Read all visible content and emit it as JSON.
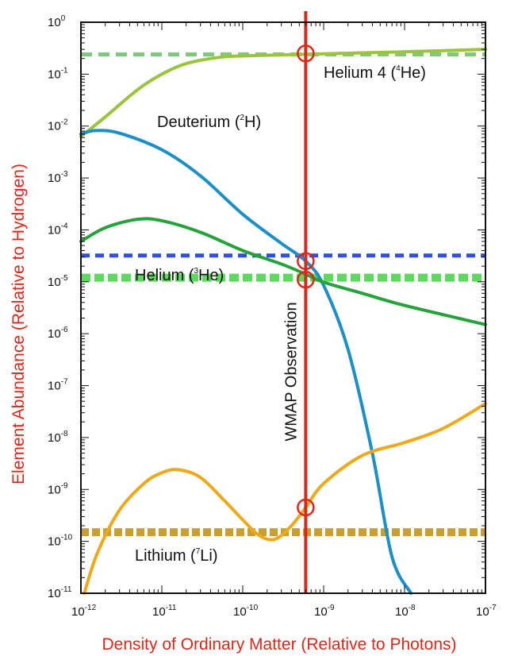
{
  "chart_data": {
    "type": "line",
    "title": "",
    "xlabel": "Density of Ordinary Matter (Relative to Photons)",
    "ylabel": "Element Abundance (Relative to Hydrogen)",
    "x_scale": "log",
    "y_scale": "log",
    "xlim": [
      1e-12,
      1e-07
    ],
    "ylim": [
      1e-11,
      1
    ],
    "x_ticks": [
      {
        "base": "10",
        "exp": "-12",
        "value": 1e-12
      },
      {
        "base": "10",
        "exp": "-11",
        "value": 1e-11
      },
      {
        "base": "10",
        "exp": "-10",
        "value": 1e-10
      },
      {
        "base": "10",
        "exp": "-9",
        "value": 1e-09
      },
      {
        "base": "10",
        "exp": "-8",
        "value": 1e-08
      },
      {
        "base": "10",
        "exp": "-7",
        "value": 1e-07
      }
    ],
    "y_ticks": [
      {
        "base": "10",
        "exp": "0",
        "value": 1
      },
      {
        "base": "10",
        "exp": "-1",
        "value": 0.1
      },
      {
        "base": "10",
        "exp": "-2",
        "value": 0.01
      },
      {
        "base": "10",
        "exp": "-3",
        "value": 0.001
      },
      {
        "base": "10",
        "exp": "-4",
        "value": 0.0001
      },
      {
        "base": "10",
        "exp": "-5",
        "value": 1e-05
      },
      {
        "base": "10",
        "exp": "-6",
        "value": 1e-06
      },
      {
        "base": "10",
        "exp": "-7",
        "value": 1e-07
      },
      {
        "base": "10",
        "exp": "-8",
        "value": 1e-08
      },
      {
        "base": "10",
        "exp": "-9",
        "value": 1e-09
      },
      {
        "base": "10",
        "exp": "-10",
        "value": 1e-10
      },
      {
        "base": "10",
        "exp": "-11",
        "value": 1e-11
      }
    ],
    "series": [
      {
        "name_parts": [
          "Helium 4 (",
          "4",
          "He)"
        ],
        "color": "#9bc43a",
        "points": [
          [
            1e-12,
            0.0063
          ],
          [
            2e-12,
            0.015
          ],
          [
            5e-12,
            0.05
          ],
          [
            1e-11,
            0.1
          ],
          [
            2e-11,
            0.16
          ],
          [
            5e-11,
            0.21
          ],
          [
            1e-10,
            0.225
          ],
          [
            3e-10,
            0.235
          ],
          [
            6e-10,
            0.242
          ],
          [
            1e-09,
            0.247
          ],
          [
            1e-08,
            0.27
          ],
          [
            1e-07,
            0.3
          ]
        ]
      },
      {
        "name_parts": [
          "Deuterium (",
          "2",
          "H)"
        ],
        "color": "#1a8fc8",
        "points": [
          [
            1e-12,
            0.007
          ],
          [
            1.5e-12,
            0.0082
          ],
          [
            3e-12,
            0.0073
          ],
          [
            1e-11,
            0.0035
          ],
          [
            3e-11,
            0.0011
          ],
          [
            1e-10,
            0.0002
          ],
          [
            3e-10,
            5.5e-05
          ],
          [
            6e-10,
            2.5e-05
          ],
          [
            1e-09,
            8.5e-06
          ],
          [
            2e-09,
            5e-07
          ],
          [
            4e-09,
            5e-09
          ],
          [
            7e-09,
            5e-11
          ],
          [
            1.2e-08,
            1e-11
          ]
        ]
      },
      {
        "name_parts": [
          "Helium (",
          "3",
          "He)"
        ],
        "color": "#25a33a",
        "points": [
          [
            1e-12,
            6e-05
          ],
          [
            2e-12,
            0.00011
          ],
          [
            5e-12,
            0.00016
          ],
          [
            1e-11,
            0.00015
          ],
          [
            3e-11,
            9e-05
          ],
          [
            1e-10,
            4e-05
          ],
          [
            3e-10,
            2.2e-05
          ],
          [
            6e-10,
            1.4e-05
          ],
          [
            1e-09,
            9.8e-06
          ],
          [
            3e-09,
            6e-06
          ],
          [
            1e-08,
            3.5e-06
          ],
          [
            1e-07,
            1.5e-06
          ]
        ]
      },
      {
        "name_parts": [
          "Lithium (",
          "7",
          "Li)"
        ],
        "color": "#f0a818",
        "points": [
          [
            1.1e-12,
            1e-11
          ],
          [
            1.6e-12,
            6e-11
          ],
          [
            3e-12,
            4e-10
          ],
          [
            6e-12,
            1.3e-09
          ],
          [
            1e-11,
            2.1e-09
          ],
          [
            1.6e-11,
            2.4e-09
          ],
          [
            3e-11,
            1.7e-09
          ],
          [
            6e-11,
            6e-10
          ],
          [
            1e-10,
            2.6e-10
          ],
          [
            1.6e-10,
            1.3e-10
          ],
          [
            2.5e-10,
            1.1e-10
          ],
          [
            4e-10,
            2e-10
          ],
          [
            6e-10,
            4.5e-10
          ],
          [
            1e-09,
            1.3e-09
          ],
          [
            3e-09,
            4.5e-09
          ],
          [
            1e-08,
            8e-09
          ],
          [
            3e-08,
            1.5e-08
          ],
          [
            1e-07,
            4.5e-08
          ]
        ]
      }
    ],
    "observations": [
      {
        "color": "#7fc97f",
        "value": 0.24
      },
      {
        "color": "#2e4fe0",
        "value": 3.2e-05
      },
      {
        "color": "#5ed85e",
        "value": 1.2e-05
      },
      {
        "color": "#c8a030",
        "value": 1.5e-10
      }
    ],
    "wmap": {
      "label": "WMAP Observation",
      "x": 6e-10,
      "color": "#e02618",
      "markers": [
        0.25,
        2.5e-05,
        1.1e-05,
        4.5e-10
      ]
    }
  }
}
